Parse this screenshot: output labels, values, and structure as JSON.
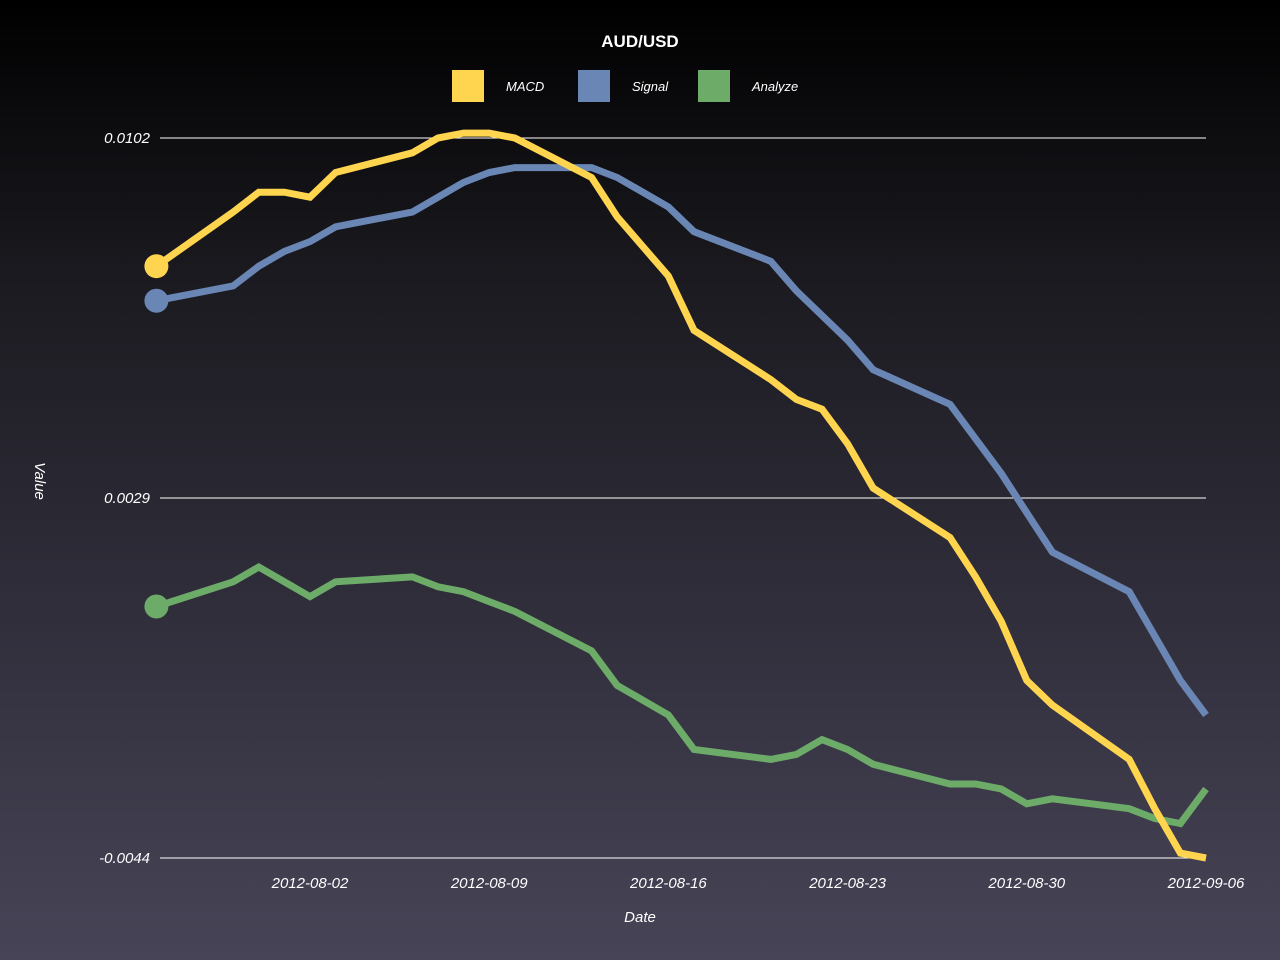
{
  "chart_data": {
    "type": "line",
    "title": "AUD/USD",
    "xlabel": "Date",
    "ylabel": "Value",
    "ylim": [
      -0.0044,
      0.0102
    ],
    "yticks": [
      "0.0102",
      "0.0029",
      "-0.0044"
    ],
    "ytick_values": [
      0.0102,
      0.0029,
      -0.0044
    ],
    "xticks": [
      "2012-08-02",
      "2012-08-09",
      "2012-08-16",
      "2012-08-23",
      "2012-08-30",
      "2012-09-06"
    ],
    "legend_position": "top-center",
    "grid": true,
    "x": [
      "2012-07-27",
      "2012-07-30",
      "2012-07-31",
      "2012-08-01",
      "2012-08-02",
      "2012-08-03",
      "2012-08-06",
      "2012-08-07",
      "2012-08-08",
      "2012-08-09",
      "2012-08-10",
      "2012-08-13",
      "2012-08-14",
      "2012-08-15",
      "2012-08-16",
      "2012-08-17",
      "2012-08-20",
      "2012-08-21",
      "2012-08-22",
      "2012-08-23",
      "2012-08-24",
      "2012-08-27",
      "2012-08-28",
      "2012-08-29",
      "2012-08-30",
      "2012-08-31",
      "2012-09-03",
      "2012-09-04",
      "2012-09-05",
      "2012-09-06"
    ],
    "series": [
      {
        "name": "MACD",
        "color": "#ffd54f",
        "values": [
          0.0076,
          0.0087,
          0.0091,
          0.0091,
          0.009,
          0.0095,
          0.0099,
          0.0102,
          0.0103,
          0.0103,
          0.0102,
          0.0094,
          0.0086,
          0.008,
          0.0074,
          0.0063,
          0.0053,
          0.0049,
          0.0047,
          0.004,
          0.0031,
          0.0021,
          0.0013,
          0.0004,
          -0.0008,
          -0.0013,
          -0.0024,
          -0.0034,
          -0.0043,
          -0.0044
        ],
        "start_marker": true
      },
      {
        "name": "Signal",
        "color": "#6a86b5",
        "values": [
          0.0069,
          0.0072,
          0.0076,
          0.0079,
          0.0081,
          0.0084,
          0.0087,
          0.009,
          0.0093,
          0.0095,
          0.0096,
          0.0096,
          0.0094,
          0.0091,
          0.0088,
          0.0083,
          0.0077,
          0.0071,
          0.0066,
          0.0061,
          0.0055,
          0.0048,
          0.0041,
          0.0034,
          0.0026,
          0.0018,
          0.001,
          0.0001,
          -0.0008,
          -0.0015
        ],
        "start_marker": true
      },
      {
        "name": "Analyze",
        "color": "#6dab69",
        "values": [
          0.0007,
          0.0012,
          0.0015,
          0.0012,
          0.0009,
          0.0012,
          0.0013,
          0.0011,
          0.001,
          0.0008,
          0.0006,
          -0.0002,
          -0.0009,
          -0.0012,
          -0.0015,
          -0.0022,
          -0.0024,
          -0.0023,
          -0.002,
          -0.0022,
          -0.0025,
          -0.0029,
          -0.0029,
          -0.003,
          -0.0033,
          -0.0032,
          -0.0034,
          -0.0036,
          -0.0037,
          -0.003
        ],
        "start_marker": true
      }
    ]
  }
}
